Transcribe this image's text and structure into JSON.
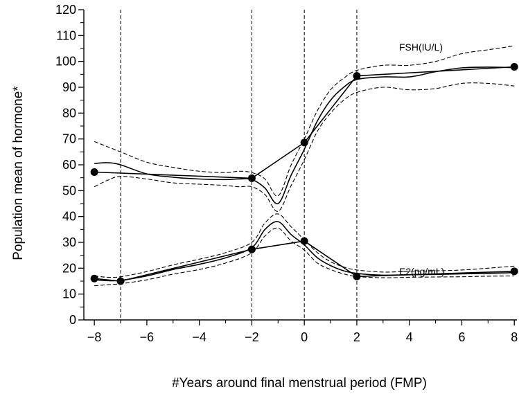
{
  "chart_data": {
    "type": "line",
    "title": "",
    "xlabel": "#Years around final menstrual period (FMP)",
    "ylabel": "Population mean of hormone*",
    "xlim": [
      -8.4,
      8.1
    ],
    "ylim": [
      0,
      120
    ],
    "xticks": [
      -8,
      -6,
      -4,
      -2,
      0,
      2,
      4,
      6,
      8
    ],
    "xtick_labels": [
      "−8",
      "−6",
      "−4",
      "−2",
      "0",
      "2",
      "4",
      "6",
      "8"
    ],
    "yticks": [
      0,
      10,
      20,
      30,
      40,
      50,
      60,
      70,
      80,
      90,
      100,
      110,
      120
    ],
    "ytick_labels": [
      "0",
      "10",
      "20",
      "30",
      "40",
      "50",
      "60",
      "70",
      "80",
      "90",
      "100",
      "110",
      "120"
    ],
    "reference_lines_x": [
      -7,
      -2,
      0,
      2
    ],
    "grid": false,
    "legend": "none",
    "annotations": [
      {
        "text": "FSH(IU/L)",
        "x": 3.6,
        "y": 105
      },
      {
        "text": "E2(pg/mL)",
        "x": 3.6,
        "y": 29
      }
    ],
    "series": [
      {
        "name": "FSH(IU/L)",
        "role": "piecewise",
        "style": "solid",
        "points": [
          [
            -8,
            57.2
          ],
          [
            -2,
            54.8
          ],
          [
            0,
            68.6
          ],
          [
            2,
            94.4
          ],
          [
            8,
            97.9
          ]
        ]
      },
      {
        "name": "FSH(IU/L)",
        "role": "smooth",
        "style": "solid",
        "points": [
          [
            -8,
            60.5
          ],
          [
            -7.5,
            60.8
          ],
          [
            -7,
            60
          ],
          [
            -6,
            56.5
          ],
          [
            -5,
            55.2
          ],
          [
            -4,
            54.5
          ],
          [
            -3,
            54.3
          ],
          [
            -2.5,
            54.5
          ],
          [
            -2,
            54.3
          ],
          [
            -1.5,
            51
          ],
          [
            -1,
            45
          ],
          [
            -0.5,
            56
          ],
          [
            0,
            66
          ],
          [
            0.5,
            77
          ],
          [
            1,
            85
          ],
          [
            1.5,
            90
          ],
          [
            2,
            93
          ],
          [
            3,
            94
          ],
          [
            4,
            94
          ],
          [
            5,
            96
          ],
          [
            6,
            97.5
          ],
          [
            7,
            97.8
          ],
          [
            8,
            97.6
          ]
        ]
      },
      {
        "name": "FSH(IU/L)",
        "role": "upper-ci",
        "style": "dashed",
        "points": [
          [
            -8,
            69
          ],
          [
            -7,
            65
          ],
          [
            -6,
            61
          ],
          [
            -5,
            59
          ],
          [
            -4,
            57.5
          ],
          [
            -3,
            57
          ],
          [
            -2.5,
            57.5
          ],
          [
            -2,
            57
          ],
          [
            -1.5,
            54.5
          ],
          [
            -1,
            48
          ],
          [
            -0.5,
            60
          ],
          [
            0,
            70
          ],
          [
            0.5,
            81
          ],
          [
            1,
            89
          ],
          [
            1.5,
            93.5
          ],
          [
            2,
            96.5
          ],
          [
            3,
            98.5
          ],
          [
            4,
            98.5
          ],
          [
            5,
            100
          ],
          [
            6,
            103
          ],
          [
            7,
            104.5
          ],
          [
            8,
            106
          ]
        ]
      },
      {
        "name": "FSH(IU/L)",
        "role": "lower-ci",
        "style": "dashed",
        "points": [
          [
            -8,
            51.5
          ],
          [
            -7.5,
            54
          ],
          [
            -7,
            55.5
          ],
          [
            -6,
            54.5
          ],
          [
            -5,
            53
          ],
          [
            -4,
            52.5
          ],
          [
            -3,
            52
          ],
          [
            -2.5,
            51.5
          ],
          [
            -2,
            51.5
          ],
          [
            -1.5,
            48.5
          ],
          [
            -1,
            42
          ],
          [
            -0.5,
            52
          ],
          [
            0,
            62
          ],
          [
            0.5,
            73
          ],
          [
            1,
            80
          ],
          [
            1.5,
            85
          ],
          [
            2,
            88
          ],
          [
            3,
            90
          ],
          [
            4,
            89
          ],
          [
            5,
            89.5
          ],
          [
            6,
            91.5
          ],
          [
            7,
            91.5
          ],
          [
            8,
            90.5
          ]
        ]
      },
      {
        "name": "E2(pg/mL)",
        "role": "piecewise",
        "style": "solid",
        "points": [
          [
            -8,
            16
          ],
          [
            -7,
            15
          ],
          [
            -2,
            27.3
          ],
          [
            0,
            30.5
          ],
          [
            2,
            16.8
          ],
          [
            8,
            18.8
          ]
        ]
      },
      {
        "name": "E2(pg/mL)",
        "role": "smooth",
        "style": "solid",
        "points": [
          [
            -8,
            15.5
          ],
          [
            -7.5,
            15.2
          ],
          [
            -7,
            15.3
          ],
          [
            -6,
            17
          ],
          [
            -5,
            19.5
          ],
          [
            -4,
            21.5
          ],
          [
            -3,
            24
          ],
          [
            -2,
            28
          ],
          [
            -1.5,
            35
          ],
          [
            -1,
            38
          ],
          [
            -0.5,
            33
          ],
          [
            0,
            29
          ],
          [
            0.5,
            24
          ],
          [
            1,
            21
          ],
          [
            1.5,
            19
          ],
          [
            2,
            18
          ],
          [
            3,
            17.3
          ],
          [
            4,
            17.5
          ],
          [
            5,
            17.6
          ],
          [
            6,
            17.8
          ],
          [
            7,
            18
          ],
          [
            8,
            18.3
          ]
        ]
      },
      {
        "name": "E2(pg/mL)",
        "role": "upper-ci",
        "style": "dashed",
        "points": [
          [
            -8,
            17
          ],
          [
            -7.5,
            16.5
          ],
          [
            -7,
            16.7
          ],
          [
            -6,
            18.7
          ],
          [
            -5,
            21.3
          ],
          [
            -4,
            23.5
          ],
          [
            -3,
            26
          ],
          [
            -2,
            30
          ],
          [
            -1.5,
            37.5
          ],
          [
            -1,
            41
          ],
          [
            -0.5,
            36
          ],
          [
            0,
            31
          ],
          [
            0.5,
            26
          ],
          [
            1,
            22.5
          ],
          [
            1.5,
            20.5
          ],
          [
            2,
            19.3
          ],
          [
            3,
            18.5
          ],
          [
            4,
            18.8
          ],
          [
            5,
            19
          ],
          [
            6,
            19.3
          ],
          [
            7,
            20
          ],
          [
            8,
            20.8
          ]
        ]
      },
      {
        "name": "E2(pg/mL)",
        "role": "lower-ci",
        "style": "dashed",
        "points": [
          [
            -8,
            13.2
          ],
          [
            -7.5,
            13.6
          ],
          [
            -7,
            14
          ],
          [
            -6,
            15.5
          ],
          [
            -5,
            17.7
          ],
          [
            -4,
            19.5
          ],
          [
            -3,
            22
          ],
          [
            -2,
            26
          ],
          [
            -1.5,
            32.5
          ],
          [
            -1,
            35.5
          ],
          [
            -0.5,
            30.5
          ],
          [
            0,
            27
          ],
          [
            0.5,
            22
          ],
          [
            1,
            19.5
          ],
          [
            1.5,
            17.8
          ],
          [
            2,
            16.8
          ],
          [
            3,
            16.3
          ],
          [
            4,
            16.5
          ],
          [
            5,
            16.6
          ],
          [
            6,
            16.7
          ],
          [
            7,
            16.9
          ],
          [
            8,
            17
          ]
        ]
      }
    ]
  }
}
